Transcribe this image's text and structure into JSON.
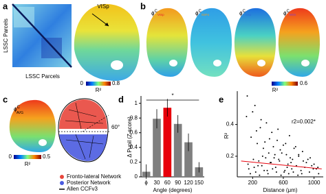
{
  "panel_a": {
    "label": "a",
    "region": "VISp",
    "x_label": "LSSC Parcels",
    "y_label": "LSSC Parcels",
    "colorbar_label": "R²",
    "colorbar_ticks": [
      0,
      0.8
    ]
  },
  "panel_b": {
    "label": "b",
    "maps": [
      {
        "symbol": "ϕ",
        "superscript": "C",
        "subscript": "VISp",
        "color": "#e8202a"
      },
      {
        "symbol": "ϕ",
        "superscript": "C",
        "subscript": "SSFo",
        "color": "#f39a1e"
      },
      {
        "symbol": "ϕ",
        "superscript": "C",
        "subscript": "SSp",
        "color": "#2a6fd6"
      },
      {
        "symbol": "ϕ",
        "superscript": "C",
        "subscript": "MOs",
        "color": "#8a3fc2"
      }
    ],
    "colorbar_label": "R²",
    "colorbar_max": 0.6
  },
  "panel_c": {
    "label": "c",
    "symbol": "ϕ",
    "superscript": "C",
    "subscript": "AVG",
    "colorbar_label": "R²",
    "colorbar_ticks": [
      0,
      0.5
    ],
    "angle": "60°",
    "legend": [
      {
        "name": "Fronto-lateral Network",
        "color": "#e8463c"
      },
      {
        "name": "Posterior Network",
        "color": "#4a5be0"
      },
      {
        "name": "Allen CCFv3",
        "color": "#000000"
      }
    ]
  },
  "chart_data": [
    {
      "type": "bar",
      "label": "d",
      "x_label": "Angle (degrees)",
      "y_label": "Δ Pupil (Z-score)",
      "categories": [
        "ϕ",
        "30",
        "60",
        "90",
        "120",
        "150"
      ],
      "values": [
        0.07,
        0.79,
        0.94,
        0.72,
        0.47,
        0.13
      ],
      "errors": [
        0.1,
        0.13,
        0.12,
        0.12,
        0.12,
        0.07
      ],
      "colors": [
        "#7f7f7f",
        "#7f7f7f",
        "#e8000b",
        "#7f7f7f",
        "#7f7f7f",
        "#7f7f7f"
      ],
      "ylim": [
        0,
        1.1
      ],
      "yticks": [
        0,
        0.2,
        0.4,
        0.6,
        0.8,
        1
      ],
      "significance": "*"
    },
    {
      "type": "scatter",
      "label": "e",
      "x_label": "Distance (μm)",
      "y_label": "R²",
      "annotation": "r2=0.002*",
      "x": [
        120,
        180,
        230,
        260,
        300,
        340,
        380,
        410,
        450,
        480,
        520,
        560,
        600,
        640,
        680,
        720,
        760,
        800,
        850,
        900,
        950,
        1000,
        1050,
        150,
        210,
        270,
        330,
        390,
        440,
        500,
        550,
        610,
        660,
        710,
        770,
        830,
        880,
        940,
        990,
        1060,
        130,
        200,
        250,
        310,
        360,
        420,
        470,
        530,
        580,
        630,
        690,
        740,
        800,
        860,
        920,
        970,
        1030,
        170,
        240,
        290,
        350,
        400,
        460,
        510,
        570,
        620,
        670,
        730,
        790,
        840,
        140,
        220,
        280,
        320,
        370,
        430,
        490,
        540,
        650,
        700
      ],
      "y": [
        0.45,
        0.32,
        0.52,
        0.28,
        0.38,
        0.25,
        0.41,
        0.22,
        0.35,
        0.19,
        0.3,
        0.24,
        0.27,
        0.21,
        0.33,
        0.18,
        0.26,
        0.2,
        0.23,
        0.16,
        0.19,
        0.15,
        0.13,
        0.12,
        0.18,
        0.14,
        0.2,
        0.11,
        0.16,
        0.13,
        0.17,
        0.1,
        0.15,
        0.12,
        0.14,
        0.11,
        0.13,
        0.1,
        0.12,
        0.09,
        0.58,
        0.48,
        0.36,
        0.43,
        0.29,
        0.31,
        0.26,
        0.37,
        0.22,
        0.28,
        0.19,
        0.25,
        0.21,
        0.17,
        0.18,
        0.14,
        0.12,
        0.09,
        0.1,
        0.08,
        0.11,
        0.09,
        0.12,
        0.1,
        0.08,
        0.11,
        0.09,
        0.1,
        0.08,
        0.09,
        0.15,
        0.13,
        0.17,
        0.14,
        0.19,
        0.16,
        0.21,
        0.18,
        0.13,
        0.16
      ],
      "color": "#000000",
      "fit": {
        "x": [
          50,
          1100
        ],
        "y": [
          0.17,
          0.12
        ],
        "color": "#e8000b"
      },
      "xlim": [
        0,
        1120
      ],
      "ylim": [
        0.07,
        0.61
      ],
      "xticks": [
        200,
        600,
        1000
      ],
      "yticks": [
        0.2,
        0.4
      ]
    }
  ]
}
